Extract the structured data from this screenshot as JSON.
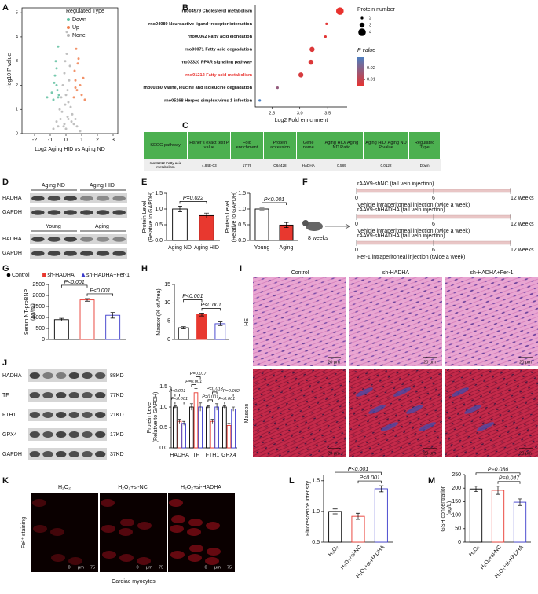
{
  "panels": [
    "A",
    "B",
    "C",
    "D",
    "E",
    "F",
    "G",
    "H",
    "I",
    "J",
    "K",
    "L",
    "M"
  ],
  "chart_data": [
    {
      "type": "scatter",
      "xlabel": "Log2 Aging HID vs Aging ND",
      "ylabel": "-log10 P value",
      "legend_title": "Regulated Type",
      "xlim": [
        -2.8,
        3.3
      ],
      "xticks": [
        -2,
        -1,
        0,
        1,
        2,
        3
      ],
      "ylim": [
        0,
        5.2
      ],
      "yticks": [
        0,
        1,
        2,
        3,
        4,
        5
      ],
      "series": [
        {
          "name": "Down",
          "color": "#5fc0a0",
          "x": [
            -0.5,
            -0.6,
            -0.7,
            -0.55,
            -0.8,
            -0.65,
            -0.45,
            -0.9,
            -0.6,
            -1.2,
            -0.75,
            -0.5
          ],
          "values": [
            1.5,
            2.0,
            2.4,
            1.8,
            1.4,
            3.0,
            1.6,
            1.7,
            2.7,
            1.5,
            2.1,
            3.6
          ]
        },
        {
          "name": "Up",
          "color": "#f07f4f",
          "x": [
            0.5,
            0.6,
            0.7,
            0.8,
            1.0,
            0.55,
            0.9,
            0.65,
            1.2,
            0.75,
            0.6,
            1.1
          ],
          "values": [
            1.5,
            2.2,
            1.8,
            3.1,
            1.6,
            2.6,
            2.0,
            3.5,
            1.4,
            2.9,
            1.9,
            2.3
          ]
        },
        {
          "name": "None",
          "color": "#b5b5b5",
          "x": [
            -0.6,
            -0.4,
            -0.3,
            -0.2,
            -0.15,
            -0.1,
            -0.05,
            0,
            0.05,
            0.1,
            0.15,
            0.2,
            0.3,
            0.4,
            0.5,
            0.7,
            -0.8,
            0.9,
            -0.25,
            0.25,
            -0.1,
            0.1,
            0,
            -0.35,
            0.35,
            0.05,
            -0.05,
            0.6,
            -0.5,
            0.15
          ],
          "values": [
            0.5,
            1.0,
            1.5,
            2.0,
            0.3,
            2.5,
            1.2,
            0.2,
            3.3,
            1.8,
            0.6,
            2.2,
            1.1,
            0.8,
            0.4,
            0.3,
            0.2,
            0.1,
            0.9,
            2.8,
            0.4,
            0.7,
            1.6,
            0.6,
            0.5,
            4.2,
            3.0,
            0.6,
            0.3,
            1.3
          ]
        }
      ]
    },
    {
      "type": "dot",
      "xlabel": "Log2 Fold enrichment",
      "categories": [
        "rno04979 Cholesterol metabolism",
        "rno04080 Neuroactive ligand−receptor interaction",
        "rno00062 Fatty acid elongation",
        "rno00071 Fatty acid degradation",
        "rno03320 PPAR signaling pathway",
        "rno01212 Fatty acid metabolism",
        "rno00280 Valine, leucine and isoleucine degradation",
        "rno05168 Herpes simplex virus 1 infection"
      ],
      "values": [
        3.72,
        3.48,
        3.46,
        3.22,
        3.2,
        3.02,
        2.6,
        2.28
      ],
      "sizes": [
        4,
        2,
        2,
        3,
        3,
        3,
        2,
        2
      ],
      "pvalues": [
        0.004,
        0.005,
        0.005,
        0.006,
        0.006,
        0.007,
        0.018,
        0.03
      ],
      "xlim": [
        2.2,
        3.85
      ],
      "xticks": [
        2.5,
        {
          "value": 3,
          "label": "3.0"
        },
        3.5
      ],
      "highlight_index": 5,
      "highlight_color": "#e8322e",
      "size_legend_title": "Protein number",
      "size_legend": [
        2,
        3,
        4
      ],
      "color_legend_title": "P value",
      "color_ticks": [
        0.02,
        0.01
      ],
      "colorscale": [
        "#e8322e",
        "#4a7fc1"
      ],
      "clim": [
        0.004,
        0.03
      ]
    },
    {
      "type": "bar",
      "categories": [
        "Aging ND",
        "Aging HID"
      ],
      "values": [
        1.0,
        0.79
      ],
      "errors": [
        0.09,
        0.08
      ],
      "fills": [
        "#ffffff",
        "#e8382f"
      ],
      "strokes": [
        "#000000",
        "#000000"
      ],
      "ylabel": [
        "Protein Level",
        "(Relative to GAPDH)"
      ],
      "ylim": [
        0,
        1.5
      ],
      "yticks": [
        {
          "value": 0,
          "label": "0.0"
        },
        0.5,
        {
          "value": 1,
          "label": "1.0"
        },
        1.5
      ],
      "comparisons": [
        {
          "label": "P=0.022",
          "pair": [
            0,
            1
          ]
        }
      ]
    },
    {
      "type": "bar",
      "categories": [
        "Young",
        "Aging"
      ],
      "values": [
        1.0,
        0.49
      ],
      "errors": [
        0.05,
        0.08
      ],
      "fills": [
        "#ffffff",
        "#e8382f"
      ],
      "strokes": [
        "#000000",
        "#000000"
      ],
      "ylabel": [
        "Protein Level",
        "(Relative to GAPDH)"
      ],
      "ylim": [
        0,
        1.5
      ],
      "yticks": [
        {
          "value": 0,
          "label": "0.0"
        },
        0.5,
        {
          "value": 1,
          "label": "1.0"
        },
        1.5
      ],
      "comparisons": [
        {
          "label": "P<0.001",
          "pair": [
            0,
            1
          ]
        }
      ]
    },
    {
      "type": "bar",
      "legend": true,
      "categories": [
        "Control",
        "sh-HADHA",
        "sh-HADHA+Fer-1"
      ],
      "markers": [
        "circle",
        "square",
        "triangle"
      ],
      "values": [
        900,
        1800,
        1100
      ],
      "errors": [
        60,
        60,
        130
      ],
      "fills": [
        "#ffffff",
        "#ffffff",
        "#ffffff"
      ],
      "strokes": [
        "#000000",
        "#e8382f",
        "#3b3bcb"
      ],
      "ylabel": [
        "Serum NT-proBNP",
        "(pg/ml)"
      ],
      "ylim": [
        0,
        2500
      ],
      "yticks": [
        0,
        500,
        1000,
        1500,
        2000,
        2500
      ],
      "comparisons": [
        {
          "label": "P<0.001",
          "pair": [
            0,
            1
          ]
        },
        {
          "label": "P<0.001",
          "pair": [
            1,
            2
          ]
        }
      ]
    },
    {
      "type": "bar",
      "values": [
        3.2,
        6.8,
        4.3
      ],
      "errors": [
        0.3,
        0.4,
        0.5
      ],
      "fills": [
        "#ffffff",
        "#e8382f",
        "#ffffff"
      ],
      "strokes": [
        "#000000",
        "#e8382f",
        "#3b3bcb"
      ],
      "ylabel": [
        "Masson(% of Area)"
      ],
      "ylim": [
        0,
        15
      ],
      "yticks": [
        0,
        5,
        10,
        15
      ],
      "comparisons": [
        {
          "label": "P<0.001",
          "pair": [
            0,
            1
          ]
        },
        {
          "label": "P<0.001",
          "pair": [
            1,
            2
          ]
        }
      ]
    },
    {
      "type": "grouped_bar",
      "categories": [
        "HADHA",
        "TF",
        "FTH1",
        "GPX4"
      ],
      "ylabel": [
        "Protein Level",
        "(Relative to GAPDH)"
      ],
      "ylim": [
        0,
        1.5
      ],
      "yticks": [
        {
          "value": 0,
          "label": "0.0"
        },
        0.5,
        {
          "value": 1,
          "label": "1.0"
        },
        1.5
      ],
      "series": [
        {
          "fill": "#ffffff",
          "stroke": "#000000",
          "values": [
            1.0,
            1.0,
            1.0,
            1.0
          ],
          "errors": [
            0.03,
            0.08,
            0.03,
            0.03
          ]
        },
        {
          "fill": "#ffffff",
          "stroke": "#e8382f",
          "values": [
            0.65,
            1.35,
            0.65,
            0.55
          ],
          "errors": [
            0.05,
            0.1,
            0.05,
            0.05
          ]
        },
        {
          "fill": "#ffffff",
          "stroke": "#3b3bcb",
          "values": [
            0.6,
            1.0,
            1.0,
            0.95
          ],
          "errors": [
            0.05,
            0.1,
            0.08,
            0.05
          ]
        }
      ],
      "comparisons": [
        {
          "label": "P<0.001",
          "group": 0,
          "pair": [
            0,
            1
          ]
        },
        {
          "label": "P<0.001",
          "group": 0,
          "pair": [
            0,
            2
          ]
        },
        {
          "label": "P=0.017",
          "group": 1,
          "pair": [
            1,
            2
          ]
        },
        {
          "label": "P=0.001",
          "group": 1,
          "pair": [
            0,
            1
          ]
        },
        {
          "label": "P=0.013",
          "group": 2,
          "pair": [
            1,
            2
          ]
        },
        {
          "label": "P=0.001",
          "group": 2,
          "pair": [
            0,
            1
          ]
        },
        {
          "label": "P=0.002",
          "group": 3,
          "pair": [
            1,
            2
          ]
        },
        {
          "label": "P<0.001",
          "group": 3,
          "pair": [
            0,
            1
          ]
        }
      ]
    },
    {
      "type": "bar",
      "categories": [
        "H₂O₂",
        "H₂O₂+si-NC",
        "H₂O₂+si-HADHA"
      ],
      "values": [
        1.0,
        0.92,
        1.37
      ],
      "errors": [
        0.04,
        0.05,
        0.05
      ],
      "fills": [
        "#ffffff",
        "#ffffff",
        "#ffffff"
      ],
      "strokes": [
        "#000000",
        "#e8382f",
        "#3b3bcb"
      ],
      "ylabel": [
        "Fluorescence Intensity"
      ],
      "ylim": [
        0.5,
        1.6
      ],
      "yticks": [
        0.5,
        {
          "value": 1,
          "label": "1.0"
        },
        1.5
      ],
      "comparisons": [
        {
          "label": "P<0.001",
          "pair": [
            0,
            2
          ]
        },
        {
          "label": "P<0.001",
          "pair": [
            1,
            2
          ]
        }
      ]
    },
    {
      "type": "bar",
      "categories": [
        "H₂O₂",
        "H₂O₂+si-NC",
        "H₂O₂+si-HADHA"
      ],
      "values": [
        197,
        192,
        148
      ],
      "errors": [
        10,
        15,
        12
      ],
      "fills": [
        "#ffffff",
        "#ffffff",
        "#ffffff"
      ],
      "strokes": [
        "#000000",
        "#e8382f",
        "#3b3bcb"
      ],
      "ylabel": [
        "GSH concentration",
        "(ng/L)"
      ],
      "ylim": [
        0,
        250
      ],
      "yticks": [
        0,
        50,
        100,
        150,
        200,
        250
      ],
      "comparisons": [
        {
          "label": "P=0.036",
          "pair": [
            0,
            2
          ]
        },
        {
          "label": "P=0.047",
          "pair": [
            1,
            2
          ]
        }
      ]
    }
  ],
  "table": {
    "header": [
      "KEGG pathway",
      "Fisher's exact test P value",
      "Fold enrichment",
      "Protein accession",
      "Gene name",
      "Aging HID/ Aging ND Ratio",
      "Aging HID/ Aging ND P value",
      "Regulated Type"
    ],
    "rows": [
      [
        "rno01212 Fatty acid metabolism",
        "4.84E-03",
        "17.76",
        "Q64428",
        "HADHA",
        "0.589",
        "0.0122",
        "Down"
      ]
    ]
  },
  "blots_d": {
    "top_groups": [
      "Aging ND",
      "Aging HID"
    ],
    "top_rows": [
      "HADHA",
      "GAPDH"
    ],
    "bottom_groups": [
      "Young",
      "Aging"
    ],
    "bottom_rows": [
      "HADHA",
      "GAPDH"
    ]
  },
  "schematic": {
    "age": "8 weeks",
    "ticks": [
      "0",
      "6",
      "12 weeks"
    ],
    "groups": [
      {
        "title": "rAAV9-shNC  (tail vein injection)",
        "sub": "Vehicle intraperitoneal injection (twice a week)"
      },
      {
        "title": "rAAV9-shHADHA  (tail vein injection)",
        "sub": "Vehicle intraperitoneal injection (twice a week)"
      },
      {
        "title": "rAAV9-shHADHA  (tail vein injection)",
        "sub": "Fer-1 intraperitoneal injection (twice a week)"
      }
    ]
  },
  "histology": {
    "columns": [
      "Control",
      "sh-HADHA",
      "sh-HADHA+Fer-1"
    ],
    "rows": [
      "HE",
      "Masson"
    ],
    "scale": "20 μm"
  },
  "blots_j": {
    "rows": [
      {
        "name": "HADHA",
        "size": "88KD"
      },
      {
        "name": "TF",
        "size": "77KD"
      },
      {
        "name": "FTH1",
        "size": "21KD"
      },
      {
        "name": "GPX4",
        "size": "17KD"
      },
      {
        "name": "GAPDH",
        "size": "37KD"
      }
    ]
  },
  "staining": {
    "columns": [
      "H₂O₂",
      "H₂O₂+si-NC",
      "H₂O₂+si-HADHA"
    ],
    "ylabel": "Fe²⁺ staining",
    "xlabel": "Cardiac myocytes",
    "scale": [
      "0",
      "μm",
      "75"
    ]
  }
}
